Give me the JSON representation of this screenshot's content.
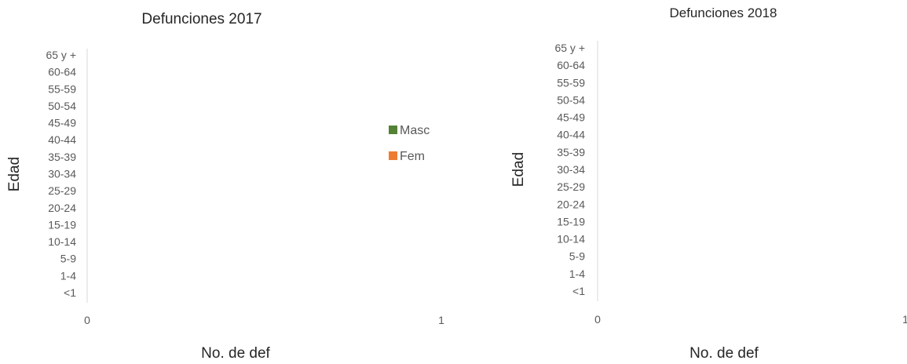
{
  "chart_data": [
    {
      "type": "bar",
      "orientation": "horizontal",
      "title": "Defunciones 2017",
      "xlabel": "No. de def",
      "ylabel": "Edad",
      "categories": [
        "<1",
        "1-4",
        "5-9",
        "10-14",
        "15-19",
        "20-24",
        "25-29",
        "30-34",
        "35-39",
        "40-44",
        "45-49",
        "50-54",
        "55-59",
        "60-64",
        "65 y +"
      ],
      "x_ticks": [
        "0",
        "1"
      ],
      "xlim": [
        0,
        1
      ],
      "series": [
        {
          "name": "Masc",
          "color": "#548235",
          "values": [
            0,
            0,
            0,
            0,
            0,
            0,
            0,
            0,
            0,
            0,
            0,
            0,
            0,
            0,
            0
          ]
        },
        {
          "name": "Fem",
          "color": "#ED7D31",
          "values": [
            0,
            0,
            0,
            0,
            0,
            0,
            0,
            0,
            0,
            0,
            0,
            0,
            0,
            0,
            0
          ]
        }
      ],
      "legend": "right",
      "grid": false
    },
    {
      "type": "bar",
      "orientation": "horizontal",
      "title": "Defunciones 2018",
      "xlabel": "No. de def",
      "ylabel": "Edad",
      "categories": [
        "<1",
        "1-4",
        "5-9",
        "10-14",
        "15-19",
        "20-24",
        "25-29",
        "30-34",
        "35-39",
        "40-44",
        "45-49",
        "50-54",
        "55-59",
        "60-64",
        "65 y +"
      ],
      "x_ticks": [
        "0",
        "1"
      ],
      "xlim": [
        0,
        1
      ],
      "series": [
        {
          "values": [
            0,
            0,
            0,
            0,
            0,
            0,
            0,
            0,
            0,
            0,
            0,
            0,
            0,
            0,
            0
          ]
        },
        {
          "values": [
            0,
            0,
            0,
            0,
            0,
            0,
            0,
            0,
            0,
            0,
            0,
            0,
            0,
            0,
            0
          ]
        }
      ],
      "grid": false
    }
  ]
}
